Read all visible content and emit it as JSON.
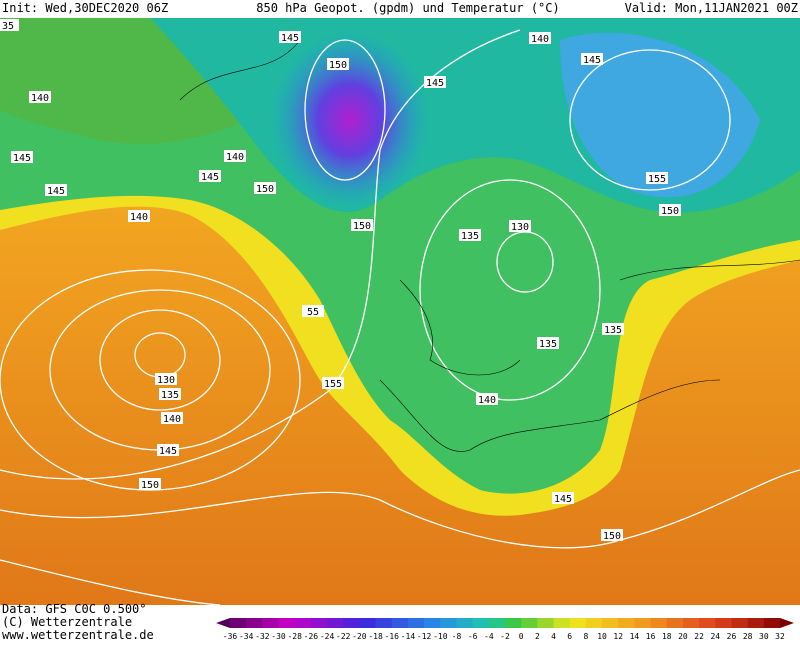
{
  "header": {
    "init": "Init: Wed,30DEC2020 06Z",
    "title": "850 hPa Geopot. (gpdm) und Temperatur (°C)",
    "valid": "Valid: Mon,11JAN2021 00Z"
  },
  "contour_labels": [
    "35",
    "145",
    "150",
    "145",
    "140",
    "145",
    "140",
    "145",
    "140",
    "145",
    "150",
    "145",
    "140",
    "150",
    "135",
    "130",
    "150",
    "155",
    "135",
    "135",
    "55",
    "130",
    "135",
    "140",
    "145",
    "150",
    "155",
    "140",
    "145",
    "150"
  ],
  "footer": {
    "data_source": "Data: GFS C0C 0.500°",
    "copyright": "(C) Wetterzentrale",
    "url": "www.wetterzentrale.de"
  },
  "colorbar": {
    "labels": [
      -36,
      -34,
      -32,
      -30,
      -28,
      -26,
      -24,
      -22,
      -20,
      -18,
      -16,
      -14,
      -12,
      -10,
      -8,
      -6,
      -4,
      -2,
      0,
      2,
      4,
      6,
      8,
      10,
      12,
      14,
      16,
      18,
      20,
      22,
      24,
      26,
      28,
      30,
      32
    ]
  }
}
